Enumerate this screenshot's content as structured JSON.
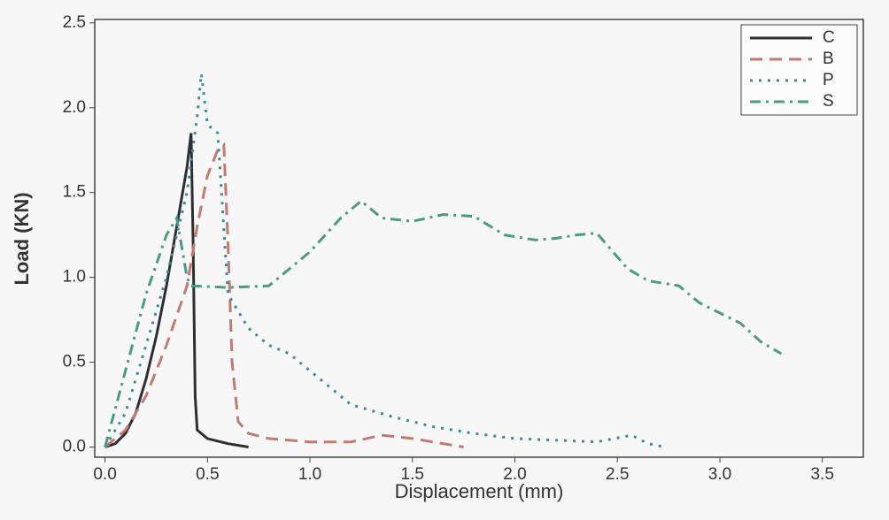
{
  "chart_data": {
    "type": "line",
    "xlabel": "Displacement (mm)",
    "ylabel": "Load (KN)",
    "xlim": [
      -0.05,
      3.7
    ],
    "ylim": [
      -0.06,
      2.52
    ],
    "xticks": [
      {
        "value": 0,
        "label": "0.0"
      },
      0.5,
      {
        "value": 1,
        "label": "1.0"
      },
      1.5,
      {
        "value": 2,
        "label": "2.0"
      },
      2.5,
      {
        "value": 3,
        "label": "3.0"
      },
      3.5
    ],
    "yticks": [
      {
        "value": 0,
        "label": "0.0"
      },
      0.5,
      {
        "value": 1,
        "label": "1.0"
      },
      1.5,
      {
        "value": 2,
        "label": "2.0"
      },
      2.5
    ],
    "legend": "upper right",
    "series": [
      {
        "name": "C",
        "color": "#2e2e33",
        "style": "solid",
        "x": [
          0,
          0.05,
          0.1,
          0.15,
          0.2,
          0.25,
          0.3,
          0.35,
          0.4,
          0.42,
          0.43,
          0.44,
          0.45,
          0.5,
          0.6,
          0.7
        ],
        "values": [
          0,
          0.02,
          0.08,
          0.2,
          0.4,
          0.65,
          0.95,
          1.3,
          1.65,
          1.85,
          1.2,
          0.3,
          0.1,
          0.05,
          0.02,
          0
        ]
      },
      {
        "name": "B",
        "color": "#c27a70",
        "style": "dashed",
        "x": [
          0,
          0.1,
          0.2,
          0.3,
          0.4,
          0.45,
          0.5,
          0.55,
          0.58,
          0.6,
          0.62,
          0.65,
          0.7,
          0.8,
          1.0,
          1.2,
          1.35,
          1.5,
          1.75
        ],
        "values": [
          0,
          0.1,
          0.3,
          0.6,
          0.95,
          1.3,
          1.6,
          1.75,
          1.78,
          1.2,
          0.5,
          0.15,
          0.08,
          0.05,
          0.03,
          0.03,
          0.07,
          0.05,
          0
        ]
      },
      {
        "name": "P",
        "color": "#3c8c94",
        "style": "dotted",
        "x": [
          0,
          0.1,
          0.2,
          0.3,
          0.4,
          0.45,
          0.47,
          0.5,
          0.55,
          0.6,
          0.7,
          0.8,
          0.9,
          1.0,
          1.1,
          1.2,
          1.4,
          1.6,
          1.8,
          2.0,
          2.2,
          2.4,
          2.57,
          2.65,
          2.73
        ],
        "values": [
          0,
          0.2,
          0.6,
          1.0,
          1.5,
          1.95,
          2.2,
          1.9,
          1.85,
          0.9,
          0.7,
          0.6,
          0.55,
          0.45,
          0.35,
          0.25,
          0.18,
          0.12,
          0.08,
          0.05,
          0.04,
          0.03,
          0.07,
          0.02,
          0
        ]
      },
      {
        "name": "S",
        "color": "#4a9a86",
        "style": "dashdot",
        "x": [
          0,
          0.1,
          0.2,
          0.3,
          0.35,
          0.4,
          0.42,
          0.6,
          0.8,
          1.0,
          1.15,
          1.25,
          1.35,
          1.5,
          1.65,
          1.8,
          1.95,
          2.1,
          2.2,
          2.3,
          2.4,
          2.55,
          2.65,
          2.8,
          2.9,
          3.1,
          3.2,
          3.3
        ],
        "values": [
          0,
          0.45,
          0.9,
          1.25,
          1.35,
          1.0,
          0.95,
          0.94,
          0.95,
          1.15,
          1.35,
          1.45,
          1.35,
          1.33,
          1.37,
          1.36,
          1.25,
          1.22,
          1.23,
          1.25,
          1.26,
          1.05,
          0.98,
          0.95,
          0.85,
          0.73,
          0.62,
          0.55
        ]
      }
    ]
  }
}
